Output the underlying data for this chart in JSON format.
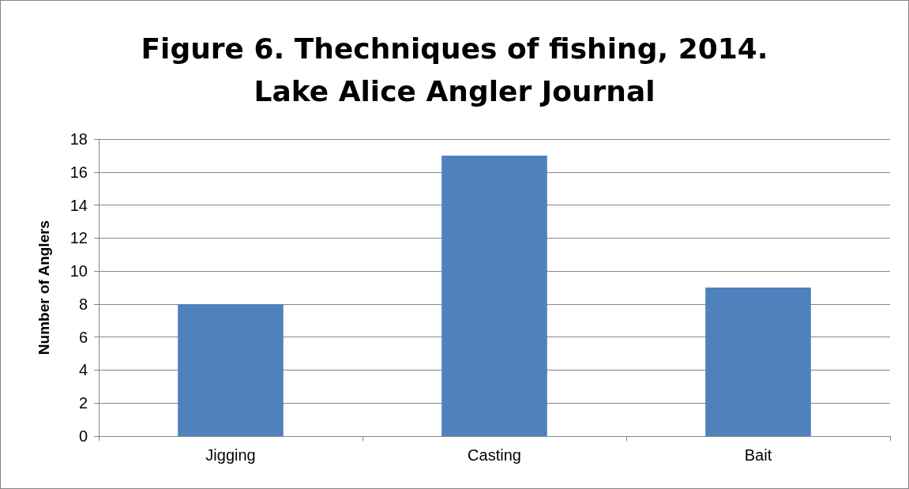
{
  "chart_data": {
    "type": "bar",
    "title": "Figure 6. Thechniques of fishing, 2014.\nLake Alice Angler Journal",
    "ylabel": "Number of Anglers",
    "categories": [
      "Jigging",
      "Casting",
      "Bait"
    ],
    "values": [
      8,
      17,
      9
    ],
    "color": "#4f81bd",
    "ylim": [
      0,
      18
    ],
    "yticks": [
      0,
      2,
      4,
      6,
      8,
      10,
      12,
      14,
      16,
      18
    ],
    "grid": "y"
  }
}
